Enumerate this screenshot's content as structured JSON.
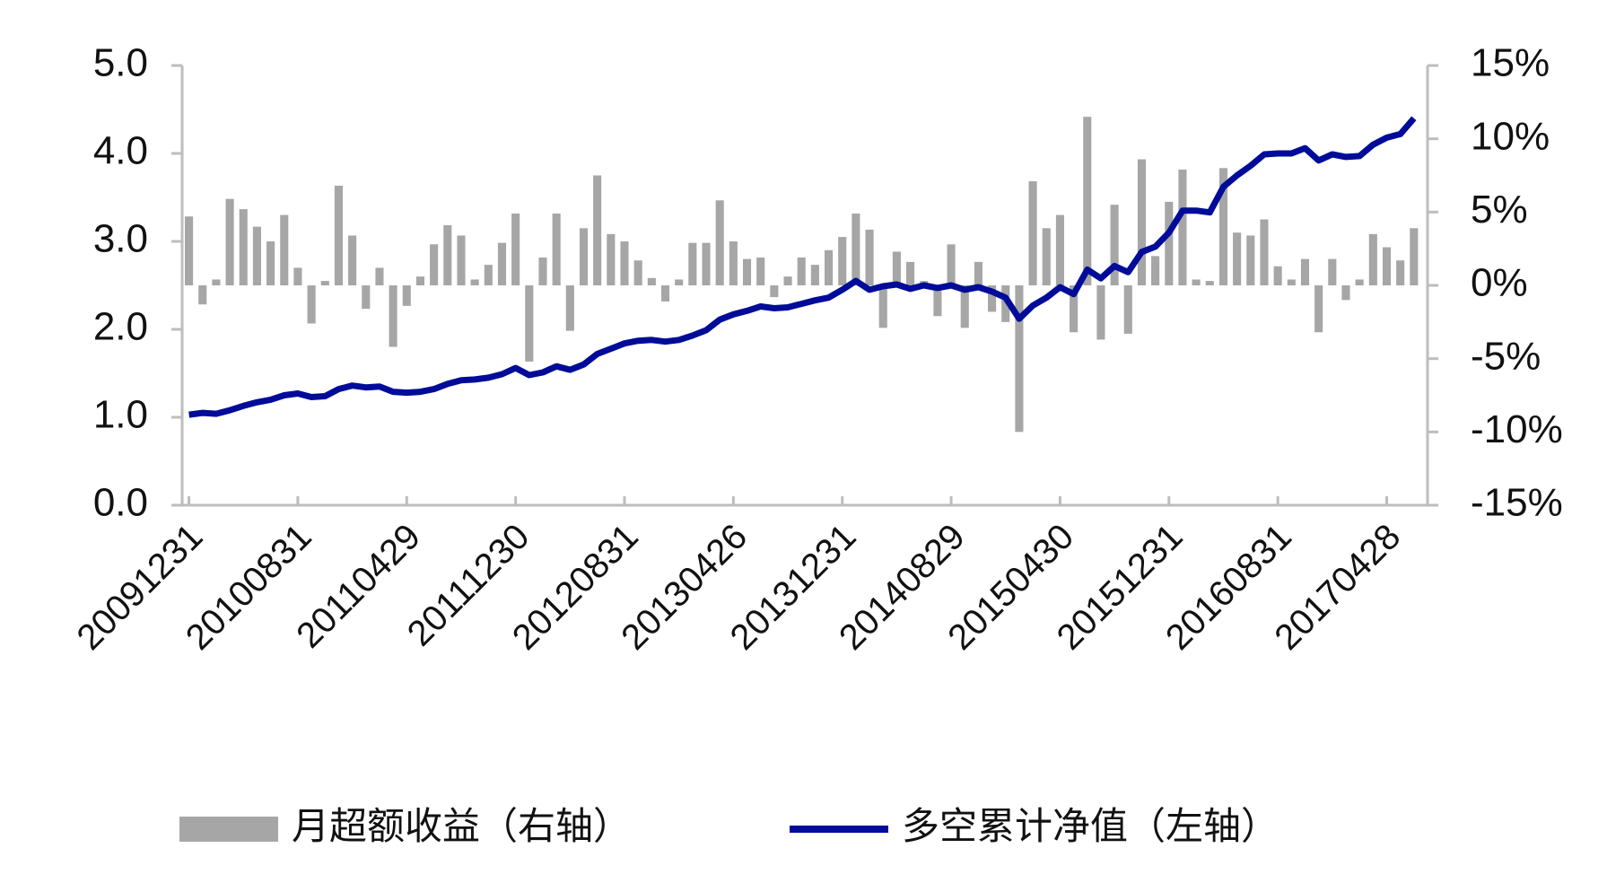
{
  "chart_data": {
    "type": "bar-line",
    "categories": [
      "20091231",
      null,
      null,
      null,
      null,
      null,
      null,
      null,
      "20100831",
      null,
      null,
      null,
      null,
      null,
      null,
      null,
      "20110429",
      null,
      null,
      null,
      null,
      null,
      null,
      null,
      "20111230",
      null,
      null,
      null,
      null,
      null,
      null,
      null,
      "20120831",
      null,
      null,
      null,
      null,
      null,
      null,
      null,
      "20130426",
      null,
      null,
      null,
      null,
      null,
      null,
      null,
      "20131231",
      null,
      null,
      null,
      null,
      null,
      null,
      null,
      "20140829",
      null,
      null,
      null,
      null,
      null,
      null,
      null,
      "20150430",
      null,
      null,
      null,
      null,
      null,
      null,
      null,
      "20151231",
      null,
      null,
      null,
      null,
      null,
      null,
      null,
      "20160831",
      null,
      null,
      null,
      null,
      null,
      null,
      null,
      "20170428",
      null,
      null
    ],
    "series": [
      {
        "name": "月超额收益（右轴）",
        "type": "bar",
        "axis": "y2",
        "color": "#a6a6a6",
        "values": [
          4.7,
          -1.3,
          0.4,
          5.9,
          5.2,
          4,
          3,
          4.8,
          1.2,
          -2.6,
          0.3,
          6.8,
          3.4,
          -1.6,
          1.2,
          -4.2,
          -1.4,
          0.6,
          2.8,
          4.1,
          3.4,
          0.4,
          1.4,
          2.9,
          4.9,
          -5.2,
          1.9,
          4.9,
          -3.1,
          3.9,
          7.5,
          3.5,
          3,
          1.7,
          0.5,
          -1.1,
          0.4,
          2.9,
          2.9,
          5.8,
          3,
          1.8,
          1.9,
          -0.8,
          0.6,
          1.9,
          1.4,
          2.4,
          3.3,
          4.9,
          3.8,
          -2.9,
          2.3,
          1.6,
          0.3,
          -2.1,
          2.8,
          -2.9,
          1.6,
          -1.8,
          -2.5,
          -10,
          7.1,
          3.9,
          4.8,
          -3.2,
          11.5,
          -3.7,
          5.5,
          -3.3,
          8.6,
          2,
          5.7,
          7.9,
          0.4,
          0.3,
          8,
          3.6,
          3.4,
          4.5,
          1.3,
          0.4,
          1.8,
          -3.2,
          1.8,
          -1,
          0.4,
          3.5,
          2.6,
          1.7,
          3.9
        ]
      },
      {
        "name": "多空累计净值（左轴）",
        "type": "line",
        "axis": "y",
        "color": "#000c99",
        "values": [
          1.03,
          1.05,
          1.04,
          1.08,
          1.13,
          1.17,
          1.2,
          1.25,
          1.27,
          1.23,
          1.24,
          1.32,
          1.36,
          1.34,
          1.35,
          1.29,
          1.28,
          1.29,
          1.32,
          1.38,
          1.42,
          1.43,
          1.45,
          1.49,
          1.56,
          1.48,
          1.51,
          1.58,
          1.54,
          1.6,
          1.72,
          1.78,
          1.84,
          1.87,
          1.88,
          1.86,
          1.88,
          1.93,
          1.99,
          2.11,
          2.17,
          2.21,
          2.26,
          2.24,
          2.25,
          2.29,
          2.33,
          2.36,
          2.45,
          2.55,
          2.45,
          2.49,
          2.51,
          2.46,
          2.5,
          2.47,
          2.5,
          2.45,
          2.48,
          2.43,
          2.36,
          2.12,
          2.27,
          2.36,
          2.48,
          2.4,
          2.68,
          2.58,
          2.72,
          2.65,
          2.88,
          2.94,
          3.1,
          3.35,
          3.35,
          3.33,
          3.62,
          3.75,
          3.86,
          3.99,
          4.0,
          4.0,
          4.06,
          3.92,
          3.99,
          3.96,
          3.97,
          4.1,
          4.18,
          4.22,
          4.4
        ]
      }
    ],
    "ylim": [
      0,
      5
    ],
    "yticks": [
      {
        "value": 0,
        "label": "0.0"
      },
      {
        "value": 1,
        "label": "1.0"
      },
      {
        "value": 2,
        "label": "2.0"
      },
      {
        "value": 3,
        "label": "3.0"
      },
      {
        "value": 4,
        "label": "4.0"
      },
      {
        "value": 5,
        "label": "5.0"
      }
    ],
    "y2lim": [
      -15,
      15
    ],
    "y2ticks": [
      {
        "value": -15,
        "label": "-15%"
      },
      {
        "value": -10,
        "label": "-10%"
      },
      {
        "value": -5,
        "label": "-5%"
      },
      {
        "value": 0,
        "label": "0%"
      },
      {
        "value": 5,
        "label": "5%"
      },
      {
        "value": 10,
        "label": "10%"
      },
      {
        "value": 15,
        "label": "15%"
      }
    ],
    "legend": "bottom"
  }
}
